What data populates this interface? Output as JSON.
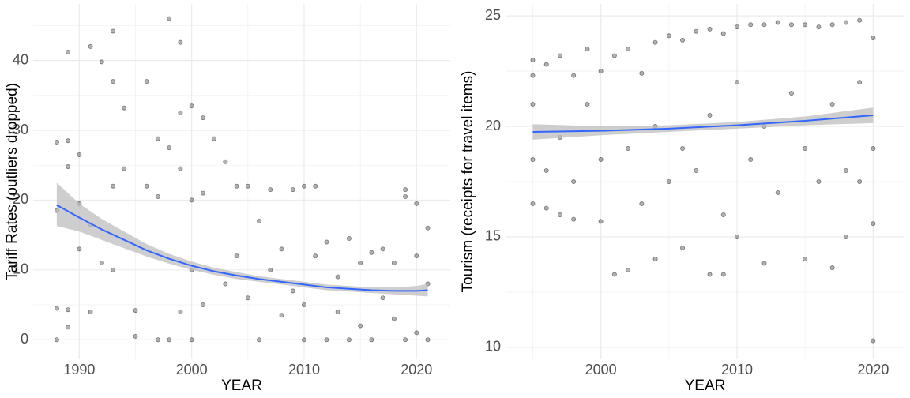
{
  "chart_data": [
    {
      "type": "scatter",
      "x_label": "YEAR",
      "y_label": "Tariff Rates (outliers dropped)",
      "xlim": [
        1985.9,
        2023
      ],
      "ylim": [
        -2.8,
        48.1
      ],
      "xticks": [
        1990,
        2000,
        2010,
        2020
      ],
      "yticks": [
        0,
        10,
        20,
        30,
        40
      ],
      "xminor": [
        1995,
        2005,
        2015
      ],
      "yminor": [
        5,
        15,
        25,
        35,
        45
      ],
      "grid": true,
      "points": {
        "color": "#000000",
        "x": [
          1988,
          1988,
          1988,
          1988,
          1989,
          1989,
          1989,
          1989,
          1989,
          1990,
          1990,
          1990,
          1991,
          1991,
          1991,
          1992,
          1992,
          1993,
          1993,
          1993,
          1993,
          1994,
          1994,
          1995,
          1995,
          1996,
          1996,
          1997,
          1997,
          1997,
          1998,
          1998,
          1998,
          1999,
          1999,
          1999,
          1999,
          2000,
          2000,
          2000,
          2000,
          2001,
          2001,
          2001,
          2002,
          2003,
          2003,
          2004,
          2004,
          2005,
          2005,
          2006,
          2006,
          2007,
          2007,
          2008,
          2008,
          2009,
          2009,
          2010,
          2010,
          2010,
          2011,
          2011,
          2012,
          2012,
          2013,
          2013,
          2014,
          2014,
          2015,
          2015,
          2016,
          2016,
          2017,
          2017,
          2018,
          2018,
          2019,
          2019,
          2019,
          2020,
          2020,
          2020,
          2021,
          2021,
          2021
        ],
        "y": [
          28.3,
          18.5,
          4.5,
          0,
          41.2,
          28.5,
          24.8,
          1.8,
          4.3,
          26.5,
          19.5,
          13,
          42,
          16.5,
          4,
          39.8,
          11,
          44.2,
          37,
          22,
          10,
          33.2,
          24.5,
          0.5,
          4.2,
          37,
          22,
          28.8,
          20.5,
          0,
          46,
          27.5,
          0,
          42.6,
          32.5,
          24.5,
          4,
          33.5,
          20,
          10,
          0,
          31.8,
          21,
          5,
          28.8,
          25.5,
          8,
          22,
          12,
          22,
          6,
          17,
          0,
          21.5,
          10,
          13,
          3.5,
          21.5,
          7,
          22,
          5,
          0,
          22,
          12,
          14,
          0,
          9,
          4,
          14.5,
          0,
          11,
          2,
          12.5,
          0,
          13,
          6,
          11,
          3,
          21.5,
          20.5,
          0,
          19.5,
          12,
          1,
          16,
          8,
          0
        ]
      },
      "smooth": {
        "color": "#3366ff",
        "band_color": "#bdbdbd",
        "x": [
          1988,
          1990,
          1992,
          1994,
          1996,
          1998,
          2000,
          2002,
          2004,
          2006,
          2008,
          2010,
          2012,
          2014,
          2016,
          2018,
          2020,
          2021
        ],
        "values": [
          19.3,
          17.5,
          15.8,
          14.3,
          12.8,
          11.6,
          10.6,
          9.8,
          9.2,
          8.7,
          8.3,
          7.9,
          7.5,
          7.3,
          7.1,
          7.0,
          7.0,
          7.1
        ],
        "lower": [
          16.3,
          15.5,
          14.3,
          13.1,
          11.9,
          10.9,
          10.0,
          9.3,
          8.7,
          8.3,
          7.9,
          7.5,
          7.1,
          6.9,
          6.7,
          6.5,
          6.3,
          6.2
        ],
        "upper": [
          22.5,
          19.5,
          17.3,
          15.5,
          13.7,
          12.3,
          11.2,
          10.3,
          9.7,
          9.1,
          8.7,
          8.3,
          7.9,
          7.7,
          7.5,
          7.5,
          7.7,
          8.0
        ]
      }
    },
    {
      "type": "scatter",
      "x_label": "YEAR",
      "y_label": "Tourism (receipts for travel items)",
      "xlim": [
        1993.0,
        2022.3
      ],
      "ylim": [
        9.46,
        25.54
      ],
      "xticks": [
        2000,
        2010,
        2020
      ],
      "yticks": [
        10,
        15,
        20,
        25
      ],
      "xminor": [
        1995,
        2005,
        2015
      ],
      "yminor": [
        12.5,
        17.5,
        22.5
      ],
      "grid": true,
      "points": {
        "color": "#000000",
        "x": [
          1995,
          1995,
          1995,
          1995,
          1995,
          1996,
          1996,
          1996,
          1997,
          1997,
          1997,
          1998,
          1998,
          1998,
          1999,
          1999,
          2000,
          2000,
          2000,
          2001,
          2001,
          2002,
          2002,
          2002,
          2003,
          2003,
          2004,
          2004,
          2004,
          2005,
          2005,
          2006,
          2006,
          2006,
          2007,
          2007,
          2008,
          2008,
          2008,
          2009,
          2009,
          2009,
          2010,
          2010,
          2010,
          2011,
          2011,
          2012,
          2012,
          2012,
          2013,
          2013,
          2014,
          2014,
          2015,
          2015,
          2015,
          2016,
          2016,
          2017,
          2017,
          2017,
          2018,
          2018,
          2018,
          2019,
          2019,
          2019,
          2020,
          2020,
          2020,
          2020
        ],
        "y": [
          23,
          22.3,
          21,
          18.5,
          16.5,
          22.8,
          18,
          16.3,
          23.2,
          19.5,
          16,
          22.3,
          17.5,
          15.8,
          23.5,
          21,
          22.5,
          18.5,
          15.7,
          23.2,
          13.3,
          23.5,
          19,
          13.5,
          22.4,
          16.5,
          23.8,
          20,
          14,
          24.1,
          17.5,
          23.9,
          19,
          14.5,
          24.3,
          18,
          24.4,
          20.5,
          13.3,
          24.2,
          16,
          13.3,
          24.5,
          22,
          15,
          24.6,
          18.5,
          24.6,
          20,
          13.8,
          24.7,
          17,
          24.6,
          21.5,
          24.6,
          19,
          14,
          24.5,
          17.5,
          24.6,
          21,
          13.6,
          24.7,
          18,
          15,
          24.8,
          22,
          17.5,
          24,
          19,
          15.6,
          10.3
        ]
      },
      "smooth": {
        "color": "#3366ff",
        "band_color": "#bdbdbd",
        "x": [
          1995,
          2000,
          2005,
          2010,
          2015,
          2020
        ],
        "values": [
          19.75,
          19.8,
          19.9,
          20.05,
          20.25,
          20.5
        ],
        "lower": [
          19.4,
          19.6,
          19.75,
          19.9,
          20.05,
          20.15
        ],
        "upper": [
          20.1,
          20.0,
          20.05,
          20.2,
          20.45,
          20.85
        ]
      }
    }
  ]
}
